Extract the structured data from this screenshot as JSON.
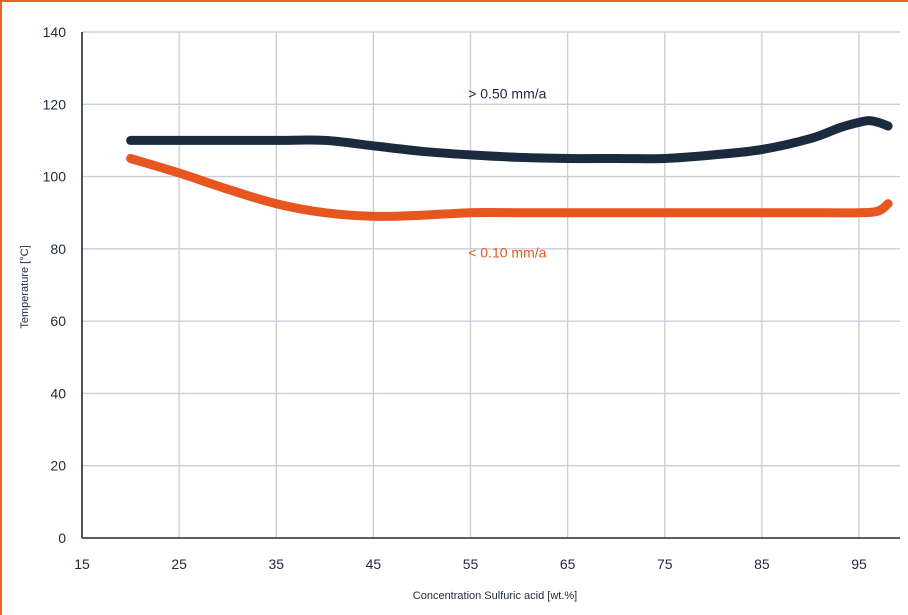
{
  "chart_data": {
    "type": "line",
    "title": "",
    "xlabel": "Concentration Sulfuric  acid [wt.%]",
    "ylabel": "Temperature [°C]",
    "xlim": [
      15,
      99
    ],
    "ylim": [
      0,
      140
    ],
    "x_ticks": [
      15,
      25,
      35,
      45,
      55,
      65,
      75,
      85,
      95
    ],
    "y_ticks": [
      0,
      20,
      40,
      60,
      80,
      100,
      120,
      140
    ],
    "grid": true,
    "series": [
      {
        "name": ">  0.50 mm/a",
        "color": "#1b2a3e",
        "x": [
          20,
          25,
          30,
          35,
          40,
          45,
          50,
          55,
          60,
          65,
          70,
          75,
          80,
          85,
          90,
          93,
          95,
          96,
          97,
          98
        ],
        "y": [
          110,
          110,
          110,
          110,
          110,
          108.5,
          107,
          106,
          105.3,
          105,
          105,
          105,
          106,
          107.5,
          110.5,
          113.5,
          115,
          115.5,
          115,
          114
        ]
      },
      {
        "name": "<  0.10 mm/a",
        "color": "#e8561f",
        "x": [
          20,
          25,
          30,
          35,
          40,
          45,
          50,
          55,
          60,
          65,
          70,
          75,
          80,
          85,
          90,
          95,
          97,
          98
        ],
        "y": [
          105,
          101,
          96.5,
          92.5,
          90,
          89,
          89.3,
          90,
          90,
          90,
          90,
          90,
          90,
          90,
          90,
          90,
          90.5,
          92.5
        ]
      }
    ],
    "annotations": [
      {
        "text": ">  0.50 mm/a",
        "x": 56,
        "y": 123,
        "color": "#1b2a3e"
      },
      {
        "text": "<  0.10 mm/a",
        "x": 56,
        "y": 79,
        "color": "#e8561f"
      }
    ]
  }
}
